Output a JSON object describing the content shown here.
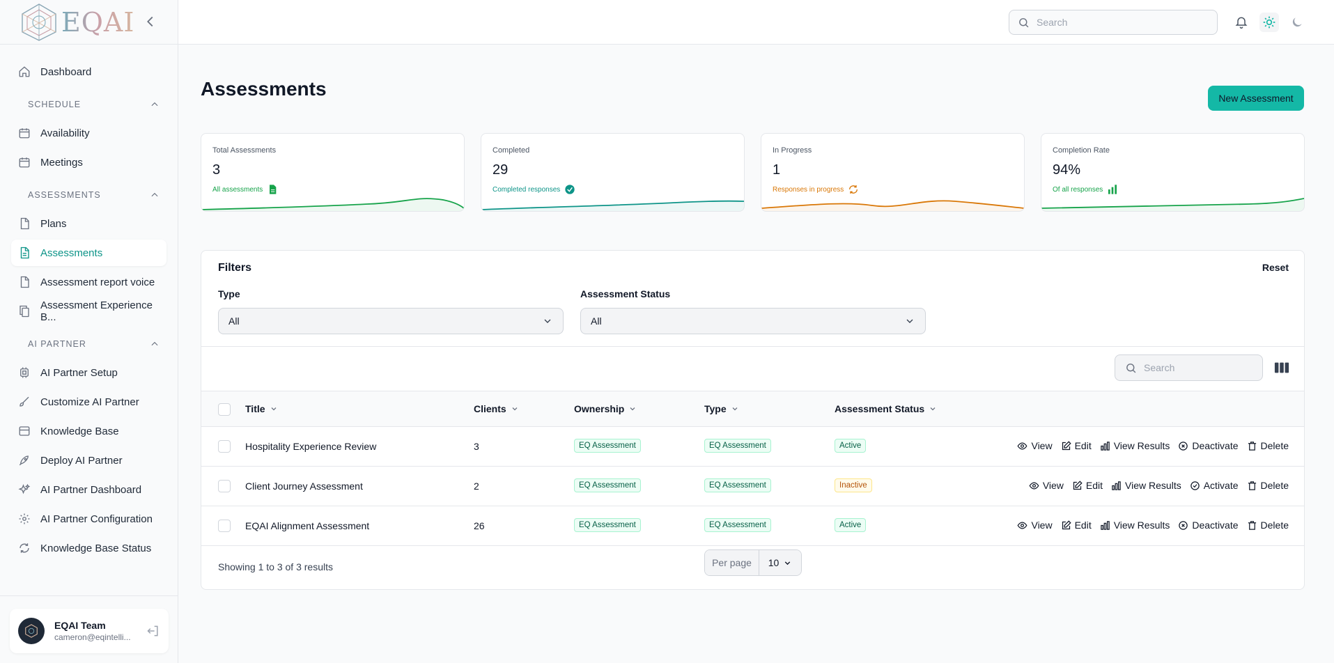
{
  "brand": {
    "name": "EQAI"
  },
  "sidebar": {
    "items": [
      {
        "label": "Dashboard"
      },
      {
        "label": "Availability"
      },
      {
        "label": "Meetings"
      },
      {
        "label": "Plans"
      },
      {
        "label": "Assessments"
      },
      {
        "label": "Assessment report voice"
      },
      {
        "label": "Assessment Experience B..."
      },
      {
        "label": "AI Partner Setup"
      },
      {
        "label": "Customize AI Partner"
      },
      {
        "label": "Knowledge Base"
      },
      {
        "label": "Deploy AI Partner"
      },
      {
        "label": "AI Partner Dashboard"
      },
      {
        "label": "AI Partner Configuration"
      },
      {
        "label": "Knowledge Base Status"
      }
    ],
    "sections": [
      "SCHEDULE",
      "ASSESSMENTS",
      "AI PARTNER"
    ],
    "user": {
      "name": "EQAI Team",
      "email": "cameron@eqintelli..."
    }
  },
  "topbar": {
    "search_placeholder": "Search"
  },
  "page": {
    "title": "Assessments",
    "new_button": "New Assessment"
  },
  "stats": [
    {
      "label": "Total Assessments",
      "value": "3",
      "sub": "All assessments",
      "color": "#16a34a",
      "icon": "document-icon"
    },
    {
      "label": "Completed",
      "value": "29",
      "sub": "Completed responses",
      "color": "#0d9488",
      "icon": "check-circle-icon"
    },
    {
      "label": "In Progress",
      "value": "1",
      "sub": "Responses in progress",
      "color": "#d97706",
      "icon": "refresh-icon"
    },
    {
      "label": "Completion Rate",
      "value": "94%",
      "sub": "Of all responses",
      "color": "#16a34a",
      "icon": "bar-chart-icon"
    }
  ],
  "filters": {
    "title": "Filters",
    "reset": "Reset",
    "type_label": "Type",
    "type_value": "All",
    "status_label": "Assessment Status",
    "status_value": "All"
  },
  "table": {
    "search_placeholder": "Search",
    "columns": [
      "Title",
      "Clients",
      "Ownership",
      "Type",
      "Assessment Status"
    ],
    "rows": [
      {
        "title": "Hospitality Experience Review",
        "clients": "3",
        "ownership": "EQ Assessment",
        "type": "EQ Assessment",
        "status": "Active",
        "toggle": "Deactivate"
      },
      {
        "title": "Client Journey Assessment",
        "clients": "2",
        "ownership": "EQ Assessment",
        "type": "EQ Assessment",
        "status": "Inactive",
        "toggle": "Activate"
      },
      {
        "title": "EQAI Alignment Assessment",
        "clients": "26",
        "ownership": "EQ Assessment",
        "type": "EQ Assessment",
        "status": "Active",
        "toggle": "Deactivate"
      }
    ],
    "actions": {
      "view": "View",
      "edit": "Edit",
      "results": "View Results",
      "delete": "Delete"
    },
    "footer": {
      "summary": "Showing 1 to 3 of 3 results",
      "per_page_label": "Per page",
      "per_page_value": "10"
    }
  },
  "colors": {
    "accent": "#14b8a6",
    "active_nav": "#0d9488"
  }
}
